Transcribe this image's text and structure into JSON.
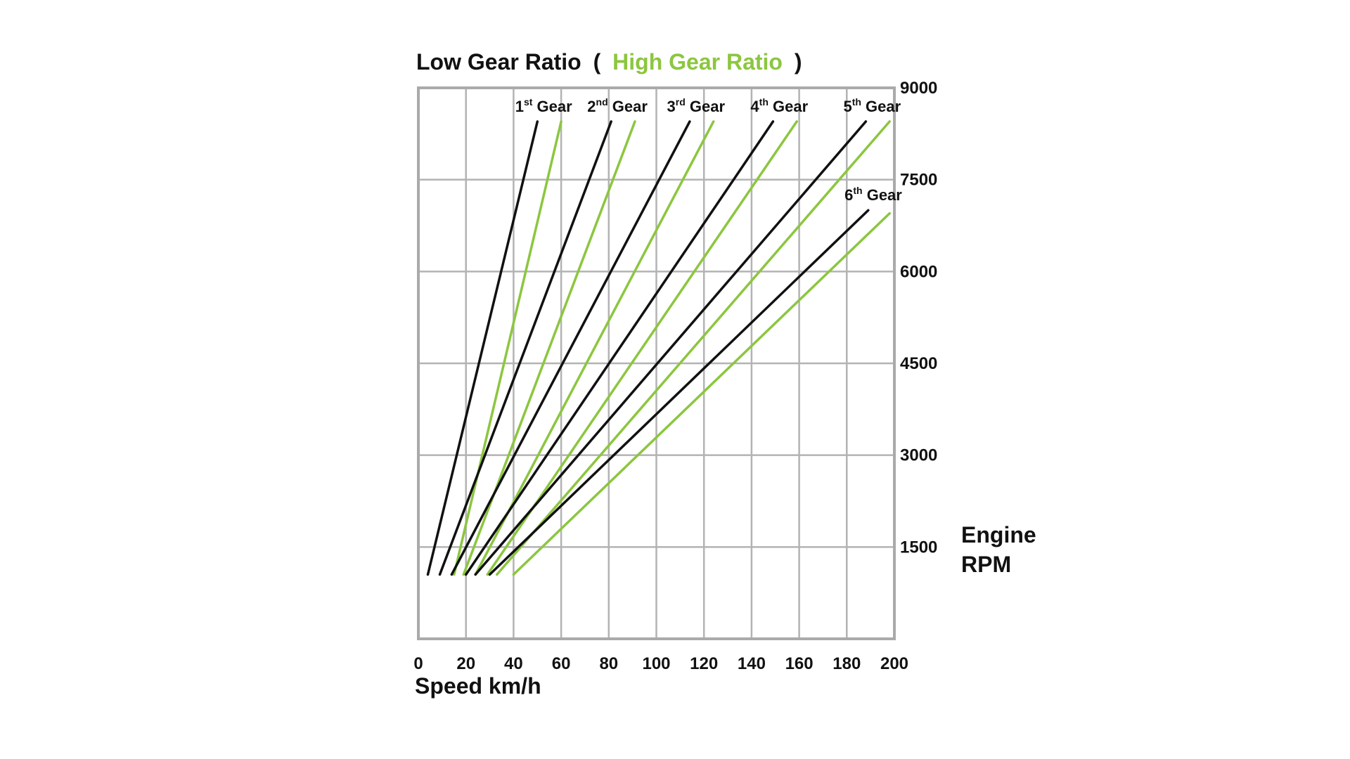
{
  "chart_data": {
    "type": "line",
    "title": {
      "low_label": "Low Gear Ratio",
      "open_paren": "(",
      "high_label": "High Gear Ratio",
      "close_paren": ")"
    },
    "xlabel": "Speed km/h",
    "ylabel_lines": [
      "Engine",
      "RPM"
    ],
    "xlim": [
      0,
      200
    ],
    "ylim": [
      0,
      9000
    ],
    "xticks": [
      0,
      20,
      40,
      60,
      80,
      100,
      120,
      140,
      160,
      180,
      200
    ],
    "yticks": [
      1500,
      3000,
      4500,
      6000,
      7500,
      9000
    ],
    "y_axis_side": "right",
    "grid": true,
    "colors": {
      "low": "#111111",
      "high": "#8cc63f",
      "grid": "#b3b3b3",
      "frame": "#aaaaaa"
    },
    "series": [
      {
        "gear": "1",
        "sup": "st",
        "suffix": "Gear",
        "ratio": "low",
        "x": [
          4,
          50
        ],
        "y": [
          1050,
          8450
        ]
      },
      {
        "gear": "1",
        "sup": "st",
        "suffix": "Gear",
        "ratio": "high",
        "x": [
          15,
          60
        ],
        "y": [
          1050,
          8450
        ]
      },
      {
        "gear": "2",
        "sup": "nd",
        "suffix": "Gear",
        "ratio": "low",
        "x": [
          9,
          81
        ],
        "y": [
          1050,
          8450
        ]
      },
      {
        "gear": "2",
        "sup": "nd",
        "suffix": "Gear",
        "ratio": "high",
        "x": [
          19,
          91
        ],
        "y": [
          1050,
          8450
        ]
      },
      {
        "gear": "3",
        "sup": "rd",
        "suffix": "Gear",
        "ratio": "low",
        "x": [
          14,
          114
        ],
        "y": [
          1050,
          8450
        ]
      },
      {
        "gear": "3",
        "sup": "rd",
        "suffix": "Gear",
        "ratio": "high",
        "x": [
          24,
          124
        ],
        "y": [
          1050,
          8450
        ]
      },
      {
        "gear": "4",
        "sup": "th",
        "suffix": "Gear",
        "ratio": "low",
        "x": [
          20,
          149
        ],
        "y": [
          1050,
          8450
        ]
      },
      {
        "gear": "4",
        "sup": "th",
        "suffix": "Gear",
        "ratio": "high",
        "x": [
          29,
          159
        ],
        "y": [
          1050,
          8450
        ]
      },
      {
        "gear": "5",
        "sup": "th",
        "suffix": "Gear",
        "ratio": "low",
        "x": [
          24,
          188
        ],
        "y": [
          1050,
          8450
        ]
      },
      {
        "gear": "5",
        "sup": "th",
        "suffix": "Gear",
        "ratio": "high",
        "x": [
          33,
          198
        ],
        "y": [
          1050,
          8450
        ]
      },
      {
        "gear": "6",
        "sup": "th",
        "suffix": "Gear",
        "ratio": "low",
        "x": [
          30,
          189
        ],
        "y": [
          1050,
          7000
        ]
      },
      {
        "gear": "6",
        "sup": "th",
        "suffix": "Gear",
        "ratio": "high",
        "x": [
          40,
          198
        ],
        "y": [
          1050,
          6950
        ]
      }
    ]
  }
}
